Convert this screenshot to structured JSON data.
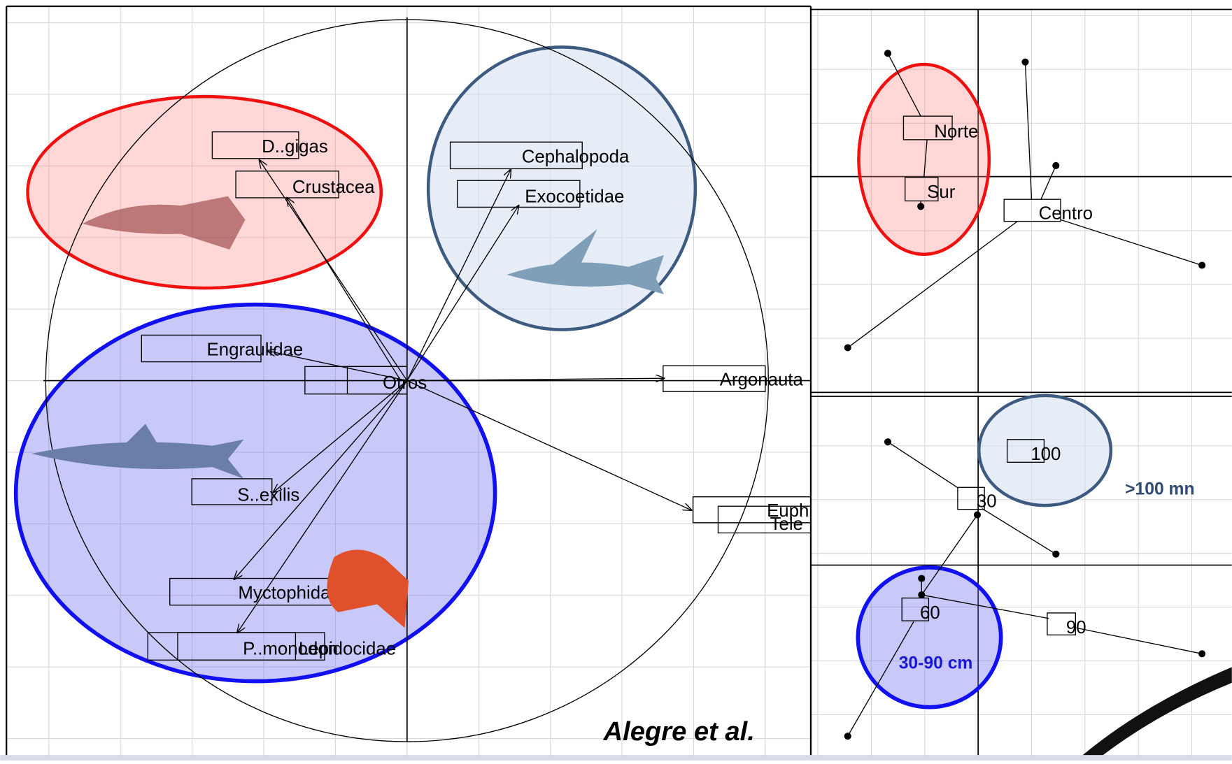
{
  "left_panel": {
    "labels": [
      "D..gigas",
      "Crustacea",
      "Cephalopoda",
      "Exocoetidae",
      "Engraulidae",
      "Otros",
      "Argonauta",
      "S..exilis",
      "Euph",
      "Tele",
      "Myctophidae",
      "P..monodon",
      "Lepidocidae"
    ],
    "credit": "Alegre et al."
  },
  "zone_panel": {
    "labels": [
      "Norte",
      "Sur",
      "Centro"
    ]
  },
  "size_panel": {
    "labels": [
      "100",
      "30",
      "60",
      "90"
    ],
    "annotations": [
      ">100 mn",
      "30-90 cm"
    ]
  }
}
